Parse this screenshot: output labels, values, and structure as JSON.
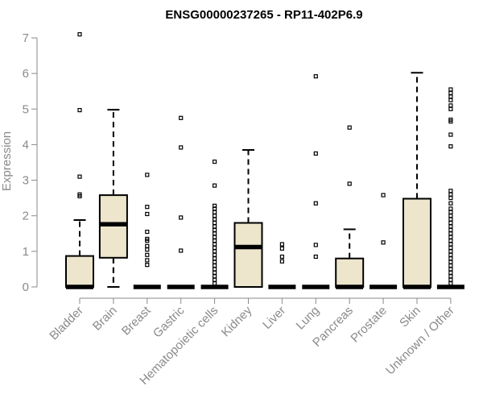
{
  "chart_data": {
    "type": "boxplot",
    "title": "ENSG00000237265 - RP11-402P6.9",
    "xlabel": "",
    "ylabel": "Expression",
    "ylim": [
      0,
      7
    ],
    "yticks": [
      0,
      1,
      2,
      3,
      4,
      5,
      6,
      7
    ],
    "grid": false,
    "legend": "none",
    "colors": {
      "box_fill": "#ede5cc",
      "box_stroke": "#000000",
      "axis": "#8a8a8a",
      "label": "#8a8a8a"
    },
    "categories": [
      "Bladder",
      "Brain",
      "Breast",
      "Gastric",
      "Hematopoietic cells",
      "Kidney",
      "Liver",
      "Lung",
      "Pancreas",
      "Prostate",
      "Skin",
      "Unknown / Other"
    ],
    "boxes": [
      {
        "category": "Bladder",
        "min": 0,
        "q1": 0,
        "median": 0,
        "q3": 0.87,
        "max": 1.88,
        "outliers": [
          2.55,
          2.6,
          3.1,
          4.97,
          7.1
        ]
      },
      {
        "category": "Brain",
        "min": 0,
        "q1": 0.82,
        "median": 1.76,
        "q3": 2.58,
        "max": 4.98,
        "outliers": []
      },
      {
        "category": "Breast",
        "min": 0,
        "q1": 0,
        "median": 0,
        "q3": 0,
        "max": 0,
        "outliers": [
          0.62,
          0.75,
          0.9,
          1.05,
          1.15,
          1.3,
          1.35,
          1.55,
          2.05,
          2.25,
          3.15
        ]
      },
      {
        "category": "Gastric",
        "min": 0,
        "q1": 0,
        "median": 0,
        "q3": 0,
        "max": 0,
        "outliers": [
          1.02,
          1.95,
          3.92,
          4.75
        ]
      },
      {
        "category": "Hematopoietic cells",
        "min": 0,
        "q1": 0,
        "median": 0,
        "q3": 0,
        "max": 0,
        "outliers": [
          0.1,
          0.2,
          0.3,
          0.4,
          0.5,
          0.6,
          0.7,
          0.8,
          0.9,
          1.0,
          1.1,
          1.2,
          1.3,
          1.4,
          1.5,
          1.6,
          1.7,
          1.8,
          1.9,
          2.0,
          2.1,
          2.2,
          2.28,
          2.85,
          3.52
        ]
      },
      {
        "category": "Kidney",
        "min": 0,
        "q1": 0,
        "median": 1.12,
        "q3": 1.8,
        "max": 3.85,
        "outliers": []
      },
      {
        "category": "Liver",
        "min": 0,
        "q1": 0,
        "median": 0,
        "q3": 0,
        "max": 0,
        "outliers": [
          0.72,
          0.85,
          1.08,
          1.2
        ]
      },
      {
        "category": "Lung",
        "min": 0,
        "q1": 0,
        "median": 0,
        "q3": 0,
        "max": 0,
        "outliers": [
          0.85,
          1.18,
          2.35,
          3.75,
          5.92
        ]
      },
      {
        "category": "Pancreas",
        "min": 0,
        "q1": 0,
        "median": 0,
        "q3": 0.8,
        "max": 1.62,
        "outliers": [
          2.9,
          4.48
        ]
      },
      {
        "category": "Prostate",
        "min": 0,
        "q1": 0,
        "median": 0,
        "q3": 0,
        "max": 0,
        "outliers": [
          1.25,
          2.58
        ]
      },
      {
        "category": "Skin",
        "min": 0,
        "q1": 0,
        "median": 0,
        "q3": 2.48,
        "max": 6.02,
        "outliers": []
      },
      {
        "category": "Unknown / Other",
        "min": 0,
        "q1": 0,
        "median": 0,
        "q3": 0,
        "max": 0,
        "outliers": [
          0.1,
          0.2,
          0.3,
          0.4,
          0.5,
          0.6,
          0.7,
          0.8,
          0.9,
          1.0,
          1.1,
          1.2,
          1.3,
          1.4,
          1.5,
          1.6,
          1.7,
          1.8,
          1.9,
          2.0,
          2.1,
          2.2,
          2.35,
          2.5,
          2.6,
          2.7,
          3.95,
          4.28,
          4.65,
          4.7,
          5.0,
          5.1,
          5.25,
          5.35,
          5.45,
          5.55
        ]
      }
    ]
  }
}
